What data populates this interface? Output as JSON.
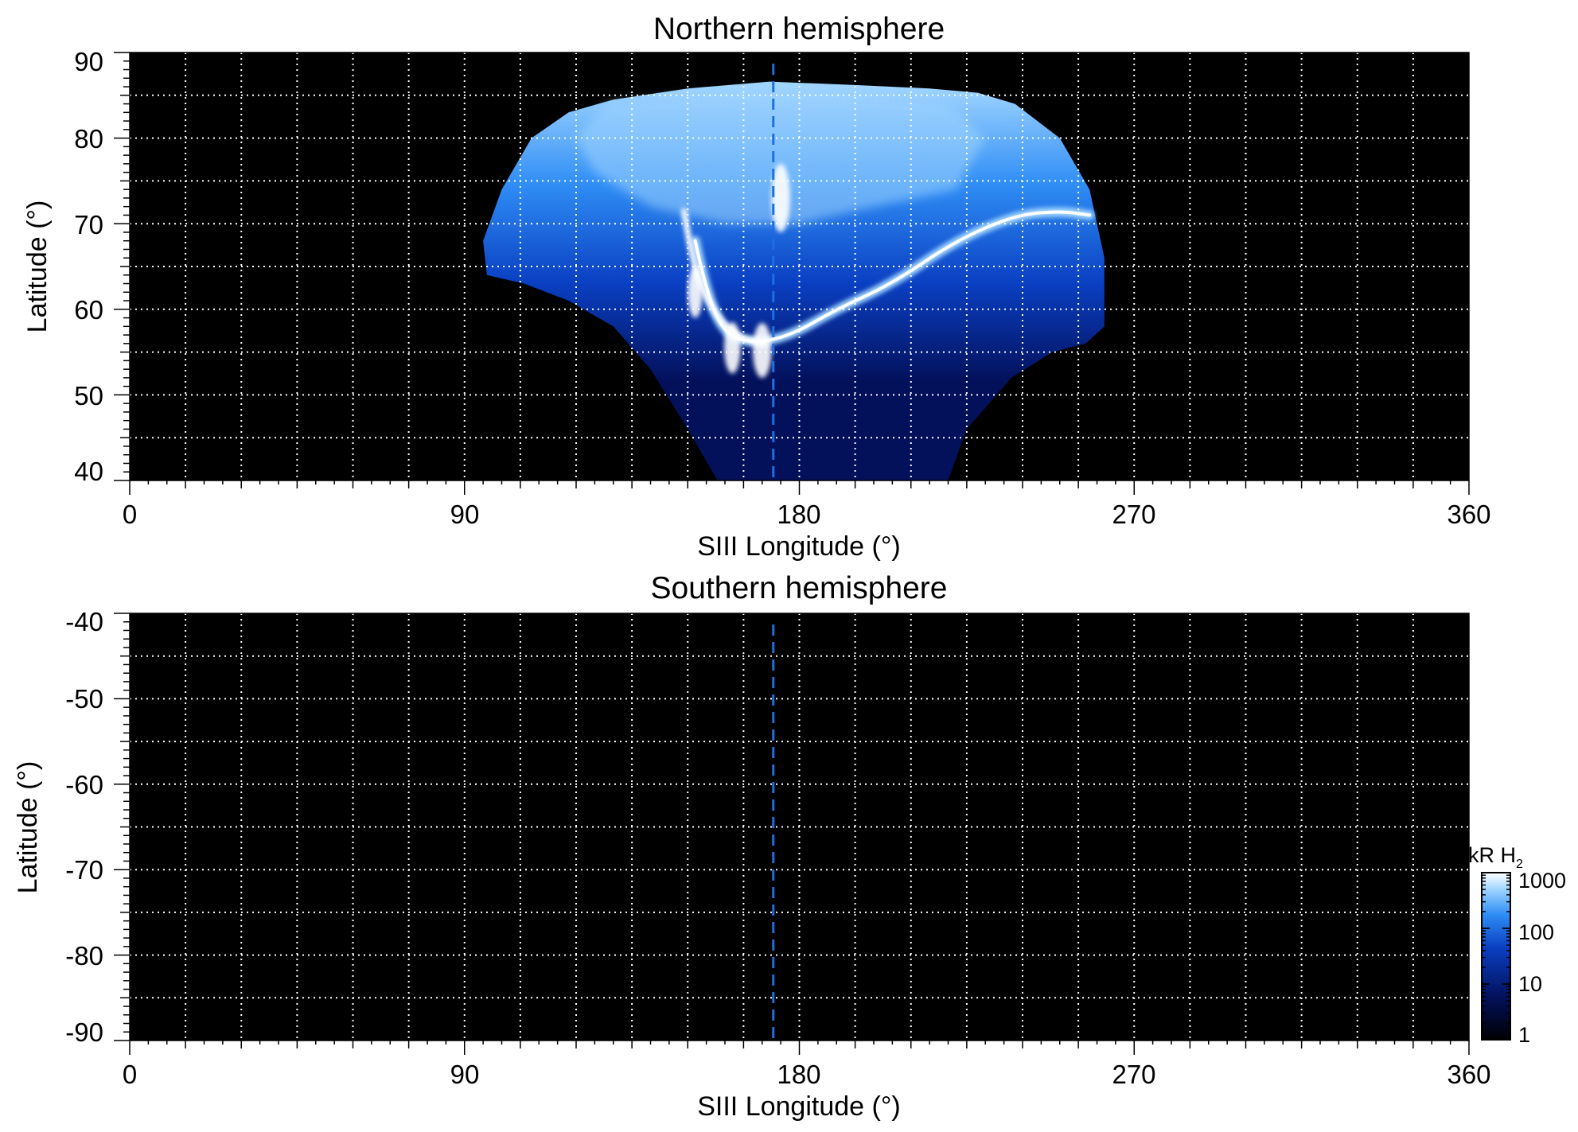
{
  "colors": {
    "background": "#000000",
    "grid": "#ffffff",
    "marker_line": "#1f6fe0",
    "colormap": [
      "#000000",
      "#03105a",
      "#0a3fc2",
      "#2f8df5",
      "#9fd4ff",
      "#ffffff"
    ]
  },
  "chart_data": [
    {
      "type": "heatmap",
      "title": "Northern hemisphere",
      "xlabel": "SIII Longitude (°)",
      "ylabel": "Latitude (°)",
      "xlim": [
        0,
        360
      ],
      "ylim": [
        40,
        90
      ],
      "xticks": [
        0,
        90,
        180,
        270,
        360
      ],
      "yticks": [
        40,
        50,
        60,
        70,
        80,
        90
      ],
      "xgrid_step": 15,
      "ygrid_step": 5,
      "grid": true,
      "dashed_line_longitude": 173,
      "image_content": "auroral emission",
      "auroral_features": {
        "coverage_outline": [
          [
            130,
            84.5
          ],
          [
            150,
            85.8
          ],
          [
            172,
            86.6
          ],
          [
            195,
            86.2
          ],
          [
            215,
            85.8
          ],
          [
            228,
            85.3
          ],
          [
            238,
            84
          ],
          [
            250,
            80
          ],
          [
            258,
            74
          ],
          [
            262,
            66
          ],
          [
            262,
            58
          ],
          [
            257,
            56
          ],
          [
            248,
            55
          ],
          [
            237,
            52
          ],
          [
            225,
            46
          ],
          [
            220,
            40
          ],
          [
            158,
            40
          ],
          [
            150,
            46
          ],
          [
            140,
            53
          ],
          [
            130,
            58
          ],
          [
            118,
            61
          ],
          [
            106,
            63
          ],
          [
            96,
            64
          ],
          [
            95,
            68
          ],
          [
            100,
            74
          ],
          [
            108,
            80
          ],
          [
            118,
            83
          ]
        ],
        "main_oval": [
          [
            152,
            68
          ],
          [
            155,
            62
          ],
          [
            160,
            57
          ],
          [
            168,
            56
          ],
          [
            178,
            57
          ],
          [
            190,
            60
          ],
          [
            205,
            63
          ],
          [
            222,
            68
          ],
          [
            238,
            71
          ],
          [
            250,
            71.5
          ],
          [
            258,
            71
          ]
        ],
        "dusk_arc": [
          [
            149,
            71.5
          ],
          [
            151,
            66
          ],
          [
            155,
            61
          ],
          [
            162,
            57
          ],
          [
            170,
            56
          ]
        ],
        "bright_spots": [
          [
            162,
            55.5,
            2.2,
            3
          ],
          [
            170,
            55.2,
            2.5,
            3.2
          ],
          [
            152,
            62,
            2,
            3
          ],
          [
            175,
            73,
            2.5,
            4
          ]
        ]
      },
      "colorbar": null
    },
    {
      "type": "heatmap",
      "title": "Southern hemisphere",
      "xlabel": "SIII Longitude (°)",
      "ylabel": "Latitude (°)",
      "xlim": [
        0,
        360
      ],
      "ylim": [
        -90,
        -40
      ],
      "xticks": [
        0,
        90,
        180,
        270,
        360
      ],
      "yticks": [
        -40,
        -50,
        -60,
        -70,
        -80,
        -90
      ],
      "xgrid_step": 15,
      "ygrid_step": 5,
      "grid": true,
      "dashed_line_longitude": 173,
      "image_content": "empty (black)",
      "colorbar": {
        "label": "kR H",
        "label_subscript": "2",
        "scale": "log",
        "range": [
          1,
          1000
        ],
        "ticks": [
          "1",
          "10",
          "100",
          "1000"
        ]
      }
    }
  ]
}
